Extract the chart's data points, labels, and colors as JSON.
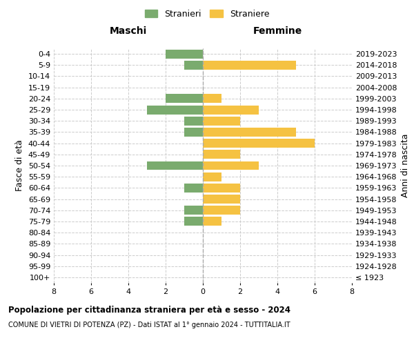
{
  "age_groups": [
    "100+",
    "95-99",
    "90-94",
    "85-89",
    "80-84",
    "75-79",
    "70-74",
    "65-69",
    "60-64",
    "55-59",
    "50-54",
    "45-49",
    "40-44",
    "35-39",
    "30-34",
    "25-29",
    "20-24",
    "15-19",
    "10-14",
    "5-9",
    "0-4"
  ],
  "birth_years": [
    "≤ 1923",
    "1924-1928",
    "1929-1933",
    "1934-1938",
    "1939-1943",
    "1944-1948",
    "1949-1953",
    "1954-1958",
    "1959-1963",
    "1964-1968",
    "1969-1973",
    "1974-1978",
    "1979-1983",
    "1984-1988",
    "1989-1993",
    "1994-1998",
    "1999-2003",
    "2004-2008",
    "2009-2013",
    "2014-2018",
    "2019-2023"
  ],
  "maschi": [
    0,
    0,
    0,
    0,
    0,
    1,
    1,
    0,
    1,
    0,
    3,
    0,
    0,
    1,
    1,
    3,
    2,
    0,
    0,
    1,
    2
  ],
  "femmine": [
    0,
    0,
    0,
    0,
    0,
    1,
    2,
    2,
    2,
    1,
    3,
    2,
    6,
    5,
    2,
    3,
    1,
    0,
    0,
    5,
    0
  ],
  "color_maschi": "#7aab6e",
  "color_femmine": "#f5c242",
  "xlim": 8,
  "title": "Popolazione per cittadinanza straniera per età e sesso - 2024",
  "subtitle": "COMUNE DI VIETRI DI POTENZA (PZ) - Dati ISTAT al 1° gennaio 2024 - TUTTITALIA.IT",
  "ylabel_left": "Fasce di età",
  "ylabel_right": "Anni di nascita",
  "label_maschi": "Stranieri",
  "label_femmine": "Straniere",
  "header_left": "Maschi",
  "header_right": "Femmine",
  "bg_color": "#ffffff",
  "grid_color": "#cccccc",
  "bar_height": 0.8
}
